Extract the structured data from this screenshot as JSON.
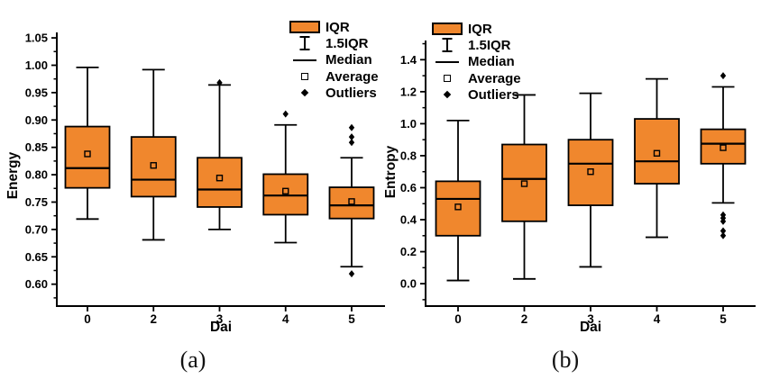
{
  "figure": {
    "captions": {
      "a": "(a)",
      "b": "(b)"
    },
    "colors": {
      "box_fill": "#F0872D",
      "line": "#000000",
      "background": "#FFFFFF"
    }
  },
  "legend": {
    "items": [
      {
        "icon": "iqr-box",
        "label": "IQR"
      },
      {
        "icon": "whisker",
        "label": "1.5IQR"
      },
      {
        "icon": "median-line",
        "label": "Median"
      },
      {
        "icon": "average-marker",
        "label": "Average"
      },
      {
        "icon": "outlier-marker",
        "label": "Outliers"
      }
    ]
  },
  "chart_data": [
    {
      "type": "box",
      "panel": "a",
      "title": "",
      "xlabel": "Dai",
      "ylabel": "Energy",
      "categories": [
        "0",
        "2",
        "3",
        "4",
        "5"
      ],
      "ytick_labels": [
        "0.60",
        "0.65",
        "0.70",
        "0.75",
        "0.80",
        "0.85",
        "0.90",
        "0.95",
        "1.00",
        "1.05"
      ],
      "ylim": [
        0.56,
        1.06
      ],
      "grid": false,
      "legend_position": "top-right-outside-plot-area",
      "boxes": [
        {
          "category": "0",
          "whisker_low": 0.719,
          "q1": 0.776,
          "median": 0.812,
          "q3": 0.888,
          "whisker_high": 0.996,
          "average": 0.838,
          "outliers": []
        },
        {
          "category": "2",
          "whisker_low": 0.681,
          "q1": 0.76,
          "median": 0.791,
          "q3": 0.869,
          "whisker_high": 0.992,
          "average": 0.817,
          "outliers": []
        },
        {
          "category": "3",
          "whisker_low": 0.7,
          "q1": 0.741,
          "median": 0.773,
          "q3": 0.831,
          "whisker_high": 0.964,
          "average": 0.794,
          "outliers": [
            0.968
          ]
        },
        {
          "category": "4",
          "whisker_low": 0.676,
          "q1": 0.727,
          "median": 0.762,
          "q3": 0.801,
          "whisker_high": 0.891,
          "average": 0.77,
          "outliers": [
            0.911
          ]
        },
        {
          "category": "5",
          "whisker_low": 0.632,
          "q1": 0.72,
          "median": 0.744,
          "q3": 0.777,
          "whisker_high": 0.831,
          "average": 0.751,
          "outliers": [
            0.886,
            0.869,
            0.859,
            0.619
          ]
        }
      ]
    },
    {
      "type": "box",
      "panel": "b",
      "title": "",
      "xlabel": "Dai",
      "ylabel": "Entropy",
      "categories": [
        "0",
        "2",
        "3",
        "4",
        "5"
      ],
      "ytick_labels": [
        "0.0",
        "0.2",
        "0.4",
        "0.6",
        "0.8",
        "1.0",
        "1.2",
        "1.4"
      ],
      "ylim": [
        -0.14,
        1.52
      ],
      "grid": false,
      "legend_position": "top-left-inside-plot-area",
      "boxes": [
        {
          "category": "0",
          "whisker_low": 0.02,
          "q1": 0.3,
          "median": 0.53,
          "q3": 0.64,
          "whisker_high": 1.02,
          "average": 0.48,
          "outliers": []
        },
        {
          "category": "2",
          "whisker_low": 0.03,
          "q1": 0.39,
          "median": 0.655,
          "q3": 0.87,
          "whisker_high": 1.18,
          "average": 0.625,
          "outliers": []
        },
        {
          "category": "3",
          "whisker_low": 0.105,
          "q1": 0.49,
          "median": 0.75,
          "q3": 0.9,
          "whisker_high": 1.19,
          "average": 0.7,
          "outliers": []
        },
        {
          "category": "4",
          "whisker_low": 0.29,
          "q1": 0.625,
          "median": 0.765,
          "q3": 1.03,
          "whisker_high": 1.28,
          "average": 0.815,
          "outliers": []
        },
        {
          "category": "5",
          "whisker_low": 0.505,
          "q1": 0.75,
          "median": 0.875,
          "q3": 0.965,
          "whisker_high": 1.23,
          "average": 0.85,
          "outliers": [
            1.3,
            0.43,
            0.41,
            0.39,
            0.33,
            0.3
          ]
        }
      ]
    }
  ]
}
